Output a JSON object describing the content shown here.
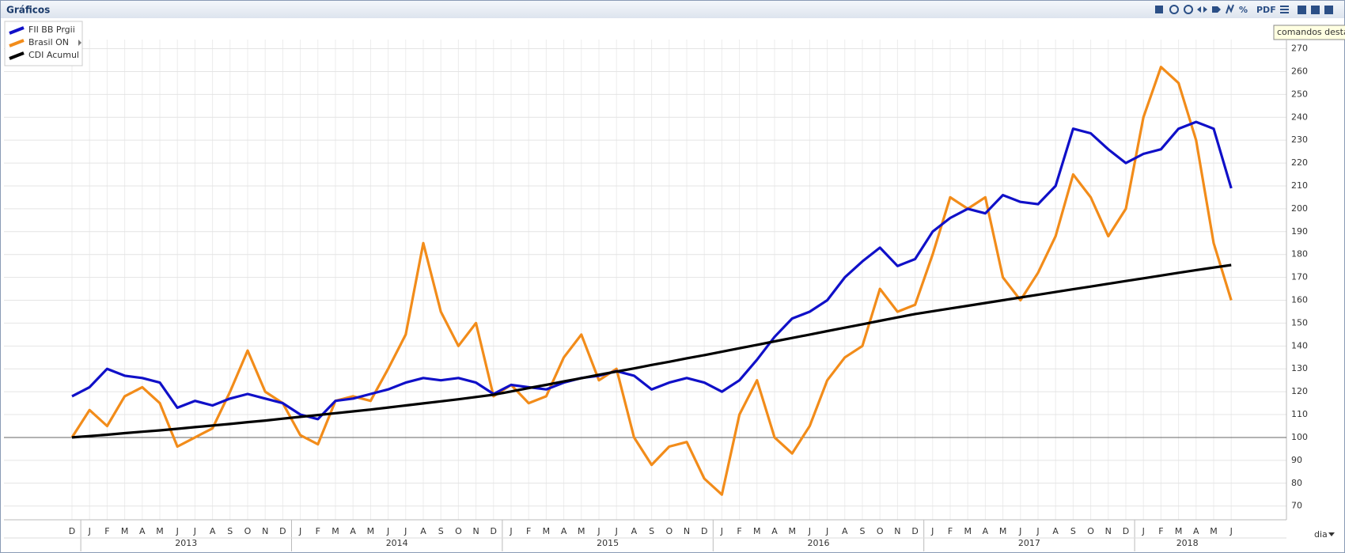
{
  "header": {
    "title": "Gráficos",
    "pdf_label": "PDF",
    "tooltip": "comandos desta"
  },
  "period_selector": "dia",
  "chart_data": {
    "type": "line",
    "categories": [
      "D",
      "J",
      "F",
      "M",
      "A",
      "M",
      "J",
      "J",
      "A",
      "S",
      "O",
      "N",
      "D",
      "J",
      "F",
      "M",
      "A",
      "M",
      "J",
      "J",
      "A",
      "S",
      "O",
      "N",
      "D",
      "J",
      "F",
      "M",
      "A",
      "M",
      "J",
      "J",
      "A",
      "S",
      "O",
      "N",
      "D",
      "J",
      "F",
      "M",
      "A",
      "M",
      "J",
      "J",
      "A",
      "S",
      "O",
      "N",
      "D",
      "J",
      "F",
      "M",
      "A",
      "M",
      "J",
      "J",
      "A",
      "S",
      "O",
      "N",
      "D",
      "J",
      "F",
      "M",
      "A",
      "M",
      "J"
    ],
    "years": [
      "2013",
      "2014",
      "2015",
      "2016",
      "2017",
      "2018"
    ],
    "series": [
      {
        "name": "FII BB Prgii",
        "color": "#1010c8",
        "values": [
          118,
          122,
          130,
          127,
          126,
          124,
          113,
          116,
          114,
          117,
          119,
          117,
          115,
          110,
          108,
          116,
          117,
          119,
          121,
          124,
          126,
          125,
          126,
          124,
          119,
          123,
          122,
          121,
          124,
          126,
          127,
          129,
          127,
          121,
          124,
          126,
          124,
          120,
          125,
          134,
          144,
          152,
          155,
          160,
          170,
          177,
          183,
          175,
          178,
          190,
          196,
          200,
          198,
          206,
          203,
          202,
          210,
          235,
          233,
          226,
          220,
          224,
          226,
          235,
          238,
          235,
          209
        ]
      },
      {
        "name": "Brasil ON",
        "color": "#f28c1a",
        "values": [
          100,
          112,
          105,
          118,
          122,
          115,
          96,
          100,
          104,
          120,
          138,
          120,
          115,
          101,
          97,
          116,
          118,
          116,
          130,
          145,
          185,
          155,
          140,
          150,
          118,
          123,
          115,
          118,
          135,
          145,
          125,
          130,
          100,
          88,
          96,
          98,
          82,
          75,
          110,
          125,
          100,
          93,
          105,
          125,
          135,
          140,
          165,
          155,
          158,
          180,
          205,
          200,
          205,
          170,
          160,
          172,
          188,
          215,
          205,
          188,
          200,
          240,
          262,
          255,
          230,
          185,
          160
        ]
      },
      {
        "name": "CDI Acumul",
        "color": "#000000",
        "values": [
          100,
          100.6,
          101.2,
          101.9,
          102.5,
          103.1,
          103.8,
          104.5,
          105.2,
          105.9,
          106.7,
          107.4,
          108.2,
          109,
          109.8,
          110.6,
          111.4,
          112.2,
          113.1,
          114,
          114.9,
          115.8,
          116.7,
          117.7,
          118.7,
          120.1,
          121.6,
          123,
          124.5,
          125.9,
          127.4,
          128.8,
          130.2,
          131.7,
          133.1,
          134.6,
          136,
          137.5,
          139,
          140.5,
          142,
          143.5,
          145,
          146.5,
          148,
          149.5,
          151,
          152.5,
          154,
          155.2,
          156.4,
          157.6,
          158.8,
          160,
          161.2,
          162.4,
          163.6,
          164.8,
          166,
          167.2,
          168.4,
          169.6,
          170.8,
          172,
          173.2,
          174.3,
          175.4
        ]
      }
    ],
    "ylim": [
      64,
      274
    ],
    "yticks": [
      70,
      80,
      90,
      100,
      110,
      120,
      130,
      140,
      150,
      160,
      170,
      180,
      190,
      200,
      210,
      220,
      230,
      240,
      250,
      260,
      270
    ],
    "baseline": 100,
    "grid": true
  }
}
